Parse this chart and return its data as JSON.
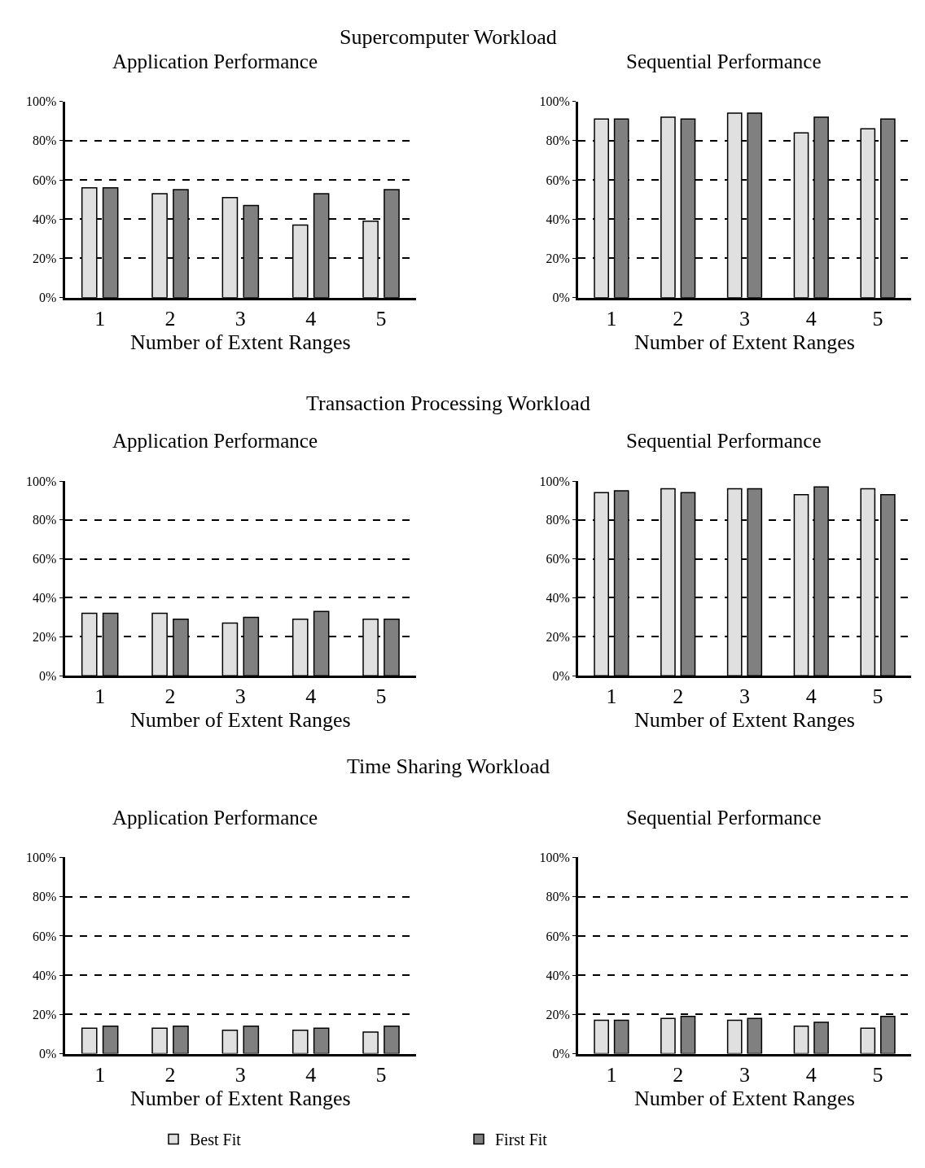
{
  "chart_data": [
    {
      "type": "bar",
      "title": "Application Performance",
      "annotations": [
        "Supercomputer Workload"
      ],
      "xlabel": "Number of Extent Ranges",
      "categories": [
        "1",
        "2",
        "3",
        "4",
        "5"
      ],
      "series": [
        {
          "color": "#e0e0e0",
          "values": [
            56,
            53,
            51,
            37,
            39
          ]
        },
        {
          "color": "#808080",
          "values": [
            56,
            55,
            47,
            53,
            55
          ]
        }
      ],
      "ylim": [
        0,
        100
      ],
      "yticks": [
        {
          "value": 0,
          "label": "0%"
        },
        {
          "value": 20,
          "label": "20%"
        },
        {
          "value": 40,
          "label": "40%"
        },
        {
          "value": 60,
          "label": "60%"
        },
        {
          "value": 80,
          "label": "80%"
        },
        {
          "value": 100,
          "label": "100%"
        }
      ],
      "grid": "y"
    },
    {
      "type": "bar",
      "title": "Sequential Performance",
      "xlabel": "Number of Extent Ranges",
      "categories": [
        "1",
        "2",
        "3",
        "4",
        "5"
      ],
      "series": [
        {
          "color": "#e0e0e0",
          "values": [
            91,
            92,
            94,
            84,
            86
          ]
        },
        {
          "color": "#808080",
          "values": [
            91,
            91,
            94,
            92,
            91
          ]
        }
      ],
      "ylim": [
        0,
        100
      ],
      "yticks": [
        {
          "value": 0,
          "label": "0%"
        },
        {
          "value": 20,
          "label": "20%"
        },
        {
          "value": 40,
          "label": "40%"
        },
        {
          "value": 60,
          "label": "60%"
        },
        {
          "value": 80,
          "label": "80%"
        },
        {
          "value": 100,
          "label": "100%"
        }
      ],
      "grid": "y"
    },
    {
      "type": "bar",
      "title": "Application Performance",
      "annotations": [
        "Transaction Processing Workload"
      ],
      "xlabel": "Number of Extent Ranges",
      "categories": [
        "1",
        "2",
        "3",
        "4",
        "5"
      ],
      "series": [
        {
          "color": "#e0e0e0",
          "values": [
            32,
            32,
            27,
            29,
            29
          ]
        },
        {
          "color": "#808080",
          "values": [
            32,
            29,
            30,
            33,
            29
          ]
        }
      ],
      "ylim": [
        0,
        100
      ],
      "yticks": [
        {
          "value": 0,
          "label": "0%"
        },
        {
          "value": 20,
          "label": "20%"
        },
        {
          "value": 40,
          "label": "40%"
        },
        {
          "value": 60,
          "label": "60%"
        },
        {
          "value": 80,
          "label": "80%"
        },
        {
          "value": 100,
          "label": "100%"
        }
      ],
      "grid": "y"
    },
    {
      "type": "bar",
      "title": "Sequential Performance",
      "xlabel": "Number of Extent Ranges",
      "categories": [
        "1",
        "2",
        "3",
        "4",
        "5"
      ],
      "series": [
        {
          "color": "#e0e0e0",
          "values": [
            94,
            96,
            96,
            93,
            96
          ]
        },
        {
          "color": "#808080",
          "values": [
            95,
            94,
            96,
            97,
            93
          ]
        }
      ],
      "ylim": [
        0,
        100
      ],
      "yticks": [
        {
          "value": 0,
          "label": "0%"
        },
        {
          "value": 20,
          "label": "20%"
        },
        {
          "value": 40,
          "label": "40%"
        },
        {
          "value": 60,
          "label": "60%"
        },
        {
          "value": 80,
          "label": "80%"
        },
        {
          "value": 100,
          "label": "100%"
        }
      ],
      "grid": "y"
    },
    {
      "type": "bar",
      "title": "Application Performance",
      "annotations": [
        "Time Sharing Workload"
      ],
      "xlabel": "Number of Extent Ranges",
      "categories": [
        "1",
        "2",
        "3",
        "4",
        "5"
      ],
      "series": [
        {
          "name": "Best Fit",
          "color": "#e0e0e0",
          "values": [
            13,
            13,
            12,
            12,
            11
          ]
        },
        {
          "name": "First Fit",
          "color": "#808080",
          "values": [
            14,
            14,
            14,
            13,
            14
          ]
        }
      ],
      "ylim": [
        0,
        100
      ],
      "yticks": [
        {
          "value": 0,
          "label": "0%"
        },
        {
          "value": 20,
          "label": "20%"
        },
        {
          "value": 40,
          "label": "40%"
        },
        {
          "value": 60,
          "label": "60%"
        },
        {
          "value": 80,
          "label": "80%"
        },
        {
          "value": 100,
          "label": "100%"
        }
      ],
      "grid": "y",
      "legend": "bottom"
    },
    {
      "type": "bar",
      "title": "Sequential Performance",
      "xlabel": "Number of Extent Ranges",
      "categories": [
        "1",
        "2",
        "3",
        "4",
        "5"
      ],
      "series": [
        {
          "color": "#e0e0e0",
          "values": [
            17,
            18,
            17,
            14,
            13
          ]
        },
        {
          "color": "#808080",
          "values": [
            17,
            19,
            18,
            16,
            19
          ]
        }
      ],
      "ylim": [
        0,
        100
      ],
      "yticks": [
        {
          "value": 0,
          "label": "0%"
        },
        {
          "value": 20,
          "label": "20%"
        },
        {
          "value": 40,
          "label": "40%"
        },
        {
          "value": 60,
          "label": "60%"
        },
        {
          "value": 80,
          "label": "80%"
        },
        {
          "value": 100,
          "label": "100%"
        }
      ],
      "grid": "y"
    }
  ]
}
